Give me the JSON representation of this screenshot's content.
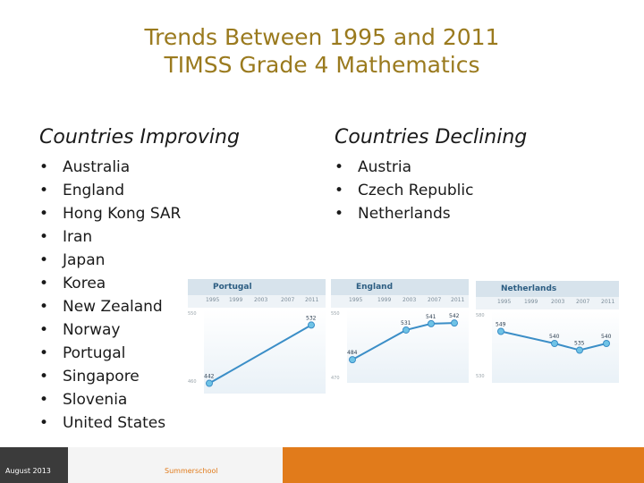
{
  "title_line1": "Trends Between 1995 and 2011",
  "title_line2": "TIMSS Grade 4 Mathematics",
  "improving": {
    "heading": "Countries Improving",
    "items": [
      "Australia",
      "England",
      "Hong Kong SAR",
      "Iran",
      "Japan",
      "Korea",
      "New Zealand",
      "Norway",
      "Portugal",
      "Singapore",
      "Slovenia",
      "United States"
    ]
  },
  "declining": {
    "heading": "Countries Declining",
    "items": [
      "Austria",
      "Czech Republic",
      "Netherlands"
    ]
  },
  "years": [
    "1995",
    "1999",
    "2003",
    "2007",
    "2011"
  ],
  "chart_data": [
    {
      "type": "line",
      "title": "Portugal",
      "x": [
        "1995",
        "1999",
        "2003",
        "2007",
        "2011"
      ],
      "series": [
        {
          "values": [
            442,
            null,
            null,
            null,
            532
          ]
        }
      ],
      "point_labels": [
        "442",
        "",
        "",
        "",
        "532"
      ],
      "axis_labels": [
        "550",
        "460"
      ]
    },
    {
      "type": "line",
      "title": "England",
      "x": [
        "1995",
        "1999",
        "2003",
        "2007",
        "2011"
      ],
      "series": [
        {
          "values": [
            484,
            null,
            531,
            541,
            542
          ]
        }
      ],
      "point_labels": [
        "484",
        "",
        "531",
        "541",
        "542"
      ],
      "axis_labels": [
        "550",
        "470"
      ]
    },
    {
      "type": "line",
      "title": "Netherlands",
      "x": [
        "1995",
        "1999",
        "2003",
        "2007",
        "2011"
      ],
      "series": [
        {
          "values": [
            549,
            null,
            540,
            535,
            540
          ]
        }
      ],
      "point_labels": [
        "549",
        "",
        "540",
        "535",
        "540"
      ],
      "axis_labels": [
        "580",
        "530"
      ]
    }
  ],
  "footer": {
    "date": "August 2013",
    "label": "Summerschool"
  },
  "colors": {
    "title": "#9a7a1e",
    "accent": "#e17b1b",
    "line": "#3b8ec7"
  }
}
